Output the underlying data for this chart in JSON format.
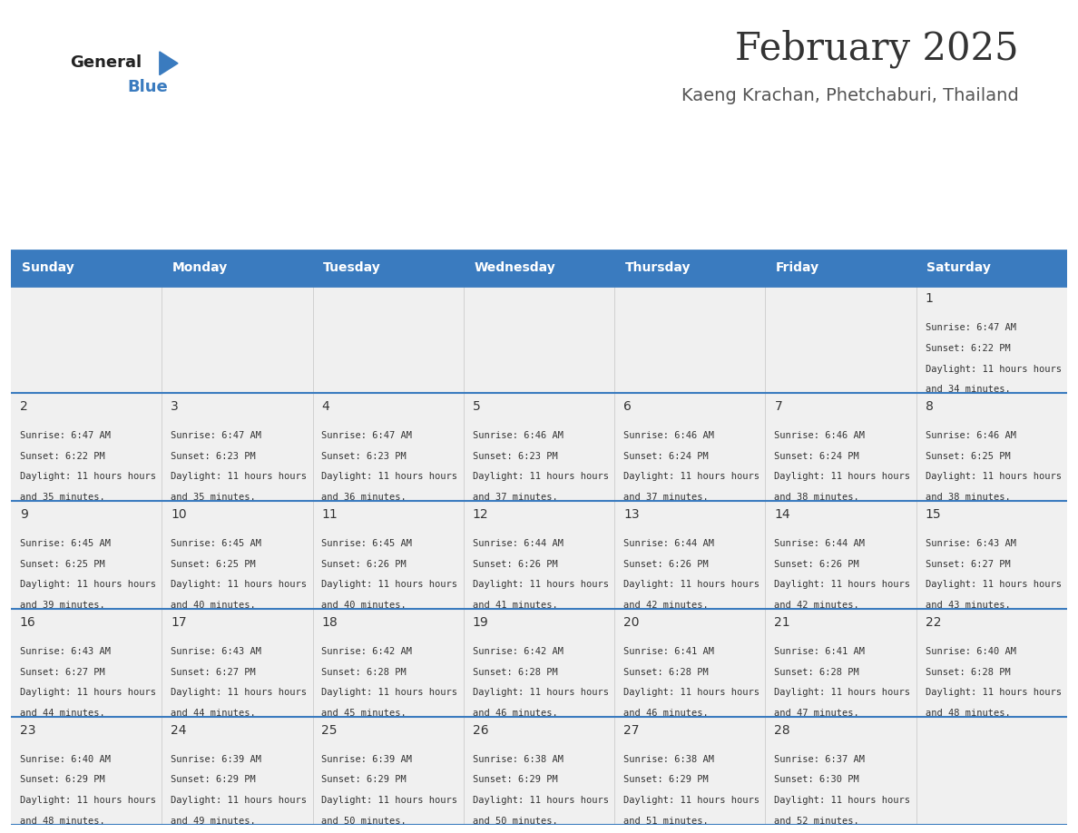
{
  "title": "February 2025",
  "subtitle": "Kaeng Krachan, Phetchaburi, Thailand",
  "header_color": "#3a7bbf",
  "header_text_color": "#ffffff",
  "cell_bg_color": "#f0f0f0",
  "day_text_color": "#333333",
  "info_text_color": "#333333",
  "border_color": "#3a7bbf",
  "days_of_week": [
    "Sunday",
    "Monday",
    "Tuesday",
    "Wednesday",
    "Thursday",
    "Friday",
    "Saturday"
  ],
  "logo_general_color": "#222222",
  "logo_blue_color": "#3a7bbf",
  "title_color": "#333333",
  "subtitle_color": "#555555",
  "weeks": [
    [
      {
        "day": "",
        "sunrise": "",
        "sunset": "",
        "daylight": ""
      },
      {
        "day": "",
        "sunrise": "",
        "sunset": "",
        "daylight": ""
      },
      {
        "day": "",
        "sunrise": "",
        "sunset": "",
        "daylight": ""
      },
      {
        "day": "",
        "sunrise": "",
        "sunset": "",
        "daylight": ""
      },
      {
        "day": "",
        "sunrise": "",
        "sunset": "",
        "daylight": ""
      },
      {
        "day": "",
        "sunrise": "",
        "sunset": "",
        "daylight": ""
      },
      {
        "day": "1",
        "sunrise": "6:47 AM",
        "sunset": "6:22 PM",
        "daylight": "11 hours and 34 minutes."
      }
    ],
    [
      {
        "day": "2",
        "sunrise": "6:47 AM",
        "sunset": "6:22 PM",
        "daylight": "11 hours and 35 minutes."
      },
      {
        "day": "3",
        "sunrise": "6:47 AM",
        "sunset": "6:23 PM",
        "daylight": "11 hours and 35 minutes."
      },
      {
        "day": "4",
        "sunrise": "6:47 AM",
        "sunset": "6:23 PM",
        "daylight": "11 hours and 36 minutes."
      },
      {
        "day": "5",
        "sunrise": "6:46 AM",
        "sunset": "6:23 PM",
        "daylight": "11 hours and 37 minutes."
      },
      {
        "day": "6",
        "sunrise": "6:46 AM",
        "sunset": "6:24 PM",
        "daylight": "11 hours and 37 minutes."
      },
      {
        "day": "7",
        "sunrise": "6:46 AM",
        "sunset": "6:24 PM",
        "daylight": "11 hours and 38 minutes."
      },
      {
        "day": "8",
        "sunrise": "6:46 AM",
        "sunset": "6:25 PM",
        "daylight": "11 hours and 38 minutes."
      }
    ],
    [
      {
        "day": "9",
        "sunrise": "6:45 AM",
        "sunset": "6:25 PM",
        "daylight": "11 hours and 39 minutes."
      },
      {
        "day": "10",
        "sunrise": "6:45 AM",
        "sunset": "6:25 PM",
        "daylight": "11 hours and 40 minutes."
      },
      {
        "day": "11",
        "sunrise": "6:45 AM",
        "sunset": "6:26 PM",
        "daylight": "11 hours and 40 minutes."
      },
      {
        "day": "12",
        "sunrise": "6:44 AM",
        "sunset": "6:26 PM",
        "daylight": "11 hours and 41 minutes."
      },
      {
        "day": "13",
        "sunrise": "6:44 AM",
        "sunset": "6:26 PM",
        "daylight": "11 hours and 42 minutes."
      },
      {
        "day": "14",
        "sunrise": "6:44 AM",
        "sunset": "6:26 PM",
        "daylight": "11 hours and 42 minutes."
      },
      {
        "day": "15",
        "sunrise": "6:43 AM",
        "sunset": "6:27 PM",
        "daylight": "11 hours and 43 minutes."
      }
    ],
    [
      {
        "day": "16",
        "sunrise": "6:43 AM",
        "sunset": "6:27 PM",
        "daylight": "11 hours and 44 minutes."
      },
      {
        "day": "17",
        "sunrise": "6:43 AM",
        "sunset": "6:27 PM",
        "daylight": "11 hours and 44 minutes."
      },
      {
        "day": "18",
        "sunrise": "6:42 AM",
        "sunset": "6:28 PM",
        "daylight": "11 hours and 45 minutes."
      },
      {
        "day": "19",
        "sunrise": "6:42 AM",
        "sunset": "6:28 PM",
        "daylight": "11 hours and 46 minutes."
      },
      {
        "day": "20",
        "sunrise": "6:41 AM",
        "sunset": "6:28 PM",
        "daylight": "11 hours and 46 minutes."
      },
      {
        "day": "21",
        "sunrise": "6:41 AM",
        "sunset": "6:28 PM",
        "daylight": "11 hours and 47 minutes."
      },
      {
        "day": "22",
        "sunrise": "6:40 AM",
        "sunset": "6:28 PM",
        "daylight": "11 hours and 48 minutes."
      }
    ],
    [
      {
        "day": "23",
        "sunrise": "6:40 AM",
        "sunset": "6:29 PM",
        "daylight": "11 hours and 48 minutes."
      },
      {
        "day": "24",
        "sunrise": "6:39 AM",
        "sunset": "6:29 PM",
        "daylight": "11 hours and 49 minutes."
      },
      {
        "day": "25",
        "sunrise": "6:39 AM",
        "sunset": "6:29 PM",
        "daylight": "11 hours and 50 minutes."
      },
      {
        "day": "26",
        "sunrise": "6:38 AM",
        "sunset": "6:29 PM",
        "daylight": "11 hours and 50 minutes."
      },
      {
        "day": "27",
        "sunrise": "6:38 AM",
        "sunset": "6:29 PM",
        "daylight": "11 hours and 51 minutes."
      },
      {
        "day": "28",
        "sunrise": "6:37 AM",
        "sunset": "6:30 PM",
        "daylight": "11 hours and 52 minutes."
      },
      {
        "day": "",
        "sunrise": "",
        "sunset": "",
        "daylight": ""
      }
    ]
  ]
}
